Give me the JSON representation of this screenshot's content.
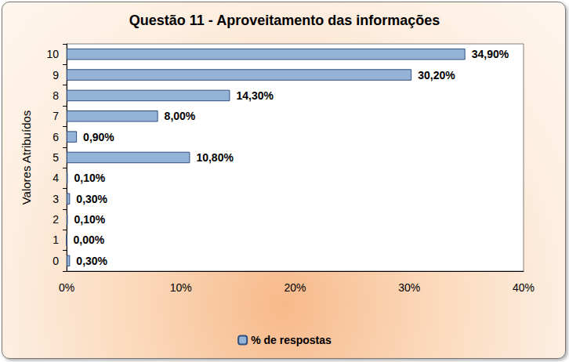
{
  "chart_data": {
    "type": "bar",
    "orientation": "horizontal",
    "title": "Questão 11 - Aproveitamento das informações",
    "y_label": "Valores Atribuídos",
    "categories": [
      "0",
      "1",
      "2",
      "3",
      "4",
      "5",
      "6",
      "7",
      "8",
      "9",
      "10"
    ],
    "series": [
      {
        "name": "% de respostas",
        "color": "#95b3d7",
        "values": [
          0.3,
          0.0,
          0.1,
          0.3,
          0.1,
          10.8,
          0.9,
          8.0,
          14.3,
          30.2,
          34.9
        ],
        "value_labels": [
          "0,30%",
          "0,00%",
          "0,10%",
          "0,30%",
          "0,10%",
          "10,80%",
          "0,90%",
          "8,00%",
          "14,30%",
          "30,20%",
          "34,90%"
        ]
      }
    ],
    "xlim": [
      0,
      40
    ],
    "xticks": [
      {
        "value": 0,
        "label": "0%"
      },
      {
        "value": 10,
        "label": "10%"
      },
      {
        "value": 20,
        "label": "20%"
      },
      {
        "value": 30,
        "label": "30%"
      },
      {
        "value": 40,
        "label": "40%"
      }
    ],
    "grid": false,
    "legend": "bottom",
    "data_labels": true
  }
}
